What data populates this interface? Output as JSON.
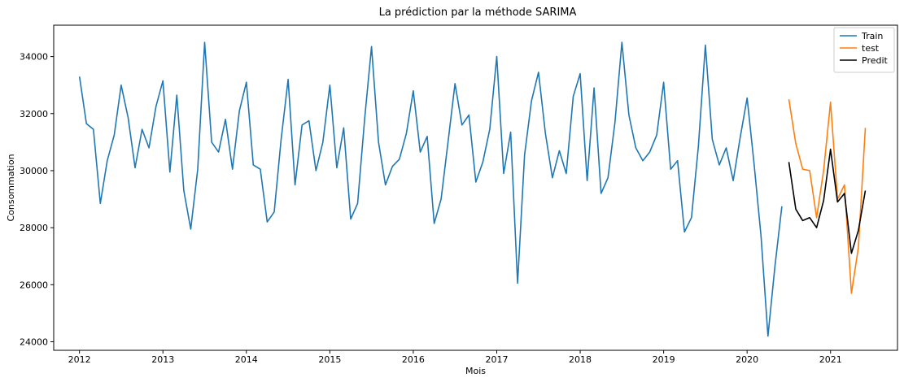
{
  "chart_data": {
    "type": "line",
    "title": "La prédiction par la méthode SARIMA",
    "xlabel": "Mois",
    "ylabel": "Consommation",
    "xlim": [
      "2011-09-10",
      "2021-10-20"
    ],
    "ylim": [
      23700,
      35100
    ],
    "x_ticks": [
      "2012",
      "2013",
      "2014",
      "2015",
      "2016",
      "2017",
      "2018",
      "2019",
      "2020",
      "2021"
    ],
    "y_ticks": [
      24000,
      26000,
      28000,
      30000,
      32000,
      34000
    ],
    "y_tick_labels": [
      "24000",
      "26000",
      "28000",
      "30000",
      "32000",
      "34000"
    ],
    "grid": false,
    "legend": "top-right",
    "series": [
      {
        "name": "Train",
        "color": "#1f77b4",
        "start": "2012-01",
        "values": [
          33300,
          31650,
          31450,
          28850,
          30350,
          31250,
          33000,
          31850,
          30100,
          31450,
          30800,
          32250,
          33150,
          29950,
          32650,
          29300,
          27950,
          30050,
          34500,
          31000,
          30650,
          31800,
          30050,
          32100,
          33100,
          30200,
          30050,
          28200,
          28550,
          31100,
          33200,
          29500,
          31600,
          31750,
          30000,
          31000,
          33000,
          30100,
          31500,
          28300,
          28850,
          31800,
          34350,
          31000,
          29500,
          30150,
          30400,
          31300,
          32800,
          30650,
          31200,
          28150,
          29000,
          31000,
          33050,
          31600,
          31950,
          29600,
          30300,
          31450,
          34000,
          29900,
          31350,
          26050,
          30550,
          32450,
          33450,
          31300,
          29750,
          30700,
          29900,
          32600,
          33400,
          29650,
          32900,
          29200,
          29750,
          31700,
          34500,
          31950,
          30800,
          30350,
          30650,
          31250,
          33100,
          30050,
          30350,
          27850,
          28350,
          30850,
          34400,
          31100,
          30200,
          30800,
          29650,
          31150,
          32550,
          30250,
          27700,
          24200,
          26650,
          28750
        ]
      },
      {
        "name": "test",
        "color": "#ff7f0e",
        "start": "2020-07",
        "values": [
          32500,
          30950,
          30050,
          30000,
          28350,
          30000,
          32400,
          29000,
          29500,
          25700,
          27300,
          31500
        ]
      },
      {
        "name": "Predit",
        "color": "#000000",
        "start": "2020-07",
        "values": [
          30300,
          28650,
          28250,
          28350,
          28000,
          28950,
          30750,
          28900,
          29200,
          27100,
          27900,
          29300
        ]
      }
    ]
  }
}
